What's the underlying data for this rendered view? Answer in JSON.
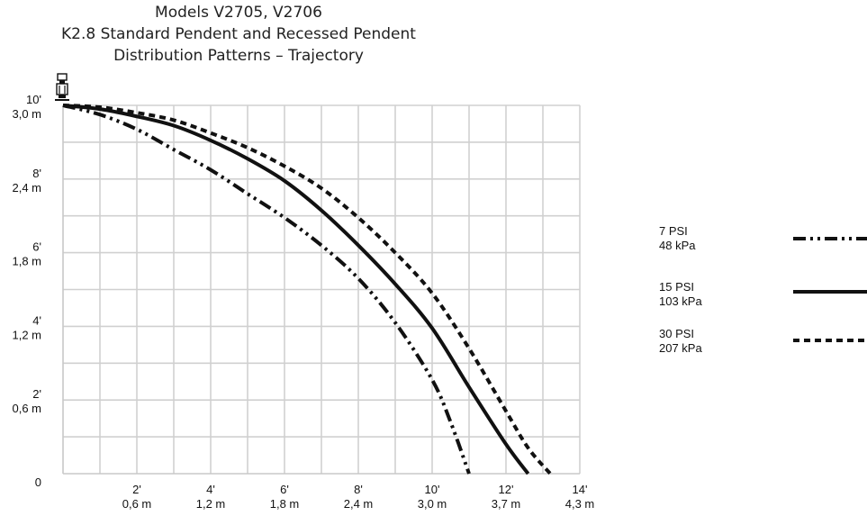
{
  "chart_data": {
    "type": "line",
    "title_lines": [
      "Models V2705, V2706",
      "K2.8 Standard Pendent and Recessed Pendent",
      "Distribution Patterns – Trajectory"
    ],
    "xlim": [
      0,
      14
    ],
    "ylim": [
      0,
      10
    ],
    "grid": true,
    "x_ticks": [
      {
        "value": 2,
        "ft": "2'",
        "m": "0,6 m"
      },
      {
        "value": 4,
        "ft": "4'",
        "m": "1,2 m"
      },
      {
        "value": 6,
        "ft": "6'",
        "m": "1,8 m"
      },
      {
        "value": 8,
        "ft": "8'",
        "m": "2,4 m"
      },
      {
        "value": 10,
        "ft": "10'",
        "m": "3,0 m"
      },
      {
        "value": 12,
        "ft": "12'",
        "m": "3,7 m"
      },
      {
        "value": 14,
        "ft": "14'",
        "m": "4,3 m"
      }
    ],
    "y_ticks": [
      {
        "value": 10,
        "ft": "10'",
        "m": "3,0 m"
      },
      {
        "value": 8,
        "ft": "8'",
        "m": "2,4 m"
      },
      {
        "value": 6,
        "ft": "6'",
        "m": "1,8 m"
      },
      {
        "value": 4,
        "ft": "4'",
        "m": "1,2 m"
      },
      {
        "value": 2,
        "ft": "2'",
        "m": "0,6 m"
      },
      {
        "value": 0,
        "ft": "0",
        "m": ""
      }
    ],
    "series": [
      {
        "name": "7 PSI",
        "name2": "48 kPa",
        "dash": "dash-dot-dot",
        "x": [
          0,
          1,
          2,
          3,
          4,
          5,
          6,
          7,
          8,
          9,
          10,
          10.5,
          11
        ],
        "y": [
          10,
          9.75,
          9.35,
          8.8,
          8.25,
          7.6,
          6.95,
          6.2,
          5.3,
          4.1,
          2.55,
          1.4,
          0
        ]
      },
      {
        "name": "15 PSI",
        "name2": "103 kPa",
        "dash": "solid",
        "x": [
          0,
          1,
          2,
          3,
          4,
          5,
          6,
          7,
          8,
          9,
          10,
          11,
          12,
          12.6
        ],
        "y": [
          10,
          9.9,
          9.7,
          9.45,
          9.05,
          8.55,
          7.95,
          7.15,
          6.2,
          5.15,
          3.95,
          2.35,
          0.8,
          0
        ]
      },
      {
        "name": "30 PSI",
        "name2": "207 kPa",
        "dash": "dashed",
        "x": [
          0,
          1,
          2,
          3,
          4,
          5,
          6,
          7,
          8,
          9,
          10,
          11,
          12,
          12.6,
          13.2
        ],
        "y": [
          10,
          9.95,
          9.8,
          9.6,
          9.25,
          8.85,
          8.35,
          7.75,
          6.95,
          6.0,
          4.9,
          3.4,
          1.7,
          0.7,
          0
        ]
      }
    ]
  }
}
